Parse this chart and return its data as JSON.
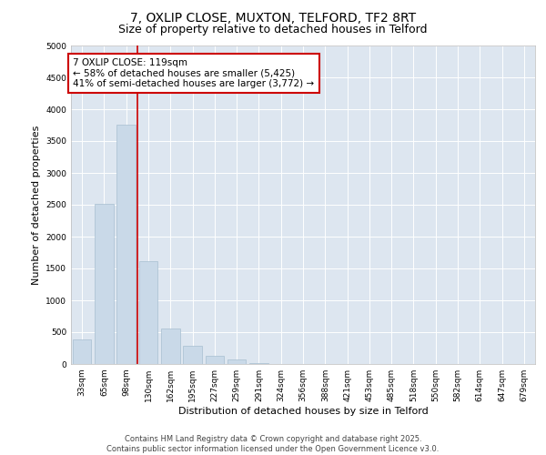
{
  "title_line1": "7, OXLIP CLOSE, MUXTON, TELFORD, TF2 8RT",
  "title_line2": "Size of property relative to detached houses in Telford",
  "xlabel": "Distribution of detached houses by size in Telford",
  "ylabel": "Number of detached properties",
  "categories": [
    "33sqm",
    "65sqm",
    "98sqm",
    "130sqm",
    "162sqm",
    "195sqm",
    "227sqm",
    "259sqm",
    "291sqm",
    "324sqm",
    "356sqm",
    "388sqm",
    "421sqm",
    "453sqm",
    "485sqm",
    "518sqm",
    "550sqm",
    "582sqm",
    "614sqm",
    "647sqm",
    "679sqm"
  ],
  "values": [
    390,
    2520,
    3760,
    1620,
    560,
    280,
    130,
    70,
    10,
    0,
    0,
    0,
    0,
    0,
    0,
    0,
    0,
    0,
    0,
    0,
    0
  ],
  "bar_color": "#c9d9e8",
  "bar_edgecolor": "#a8bfd0",
  "background_color": "#dde6f0",
  "annotation_text": "7 OXLIP CLOSE: 119sqm\n← 58% of detached houses are smaller (5,425)\n41% of semi-detached houses are larger (3,772) →",
  "redline_x": 2.5,
  "vline_color": "#cc0000",
  "box_edgecolor": "#cc0000",
  "ylim": [
    0,
    5000
  ],
  "yticks": [
    0,
    500,
    1000,
    1500,
    2000,
    2500,
    3000,
    3500,
    4000,
    4500,
    5000
  ],
  "footer_line1": "Contains HM Land Registry data © Crown copyright and database right 2025.",
  "footer_line2": "Contains public sector information licensed under the Open Government Licence v3.0.",
  "grid_color": "#ffffff",
  "title_fontsize": 10,
  "subtitle_fontsize": 9,
  "tick_fontsize": 6.5,
  "label_fontsize": 8,
  "footer_fontsize": 6,
  "annot_fontsize": 7.5
}
